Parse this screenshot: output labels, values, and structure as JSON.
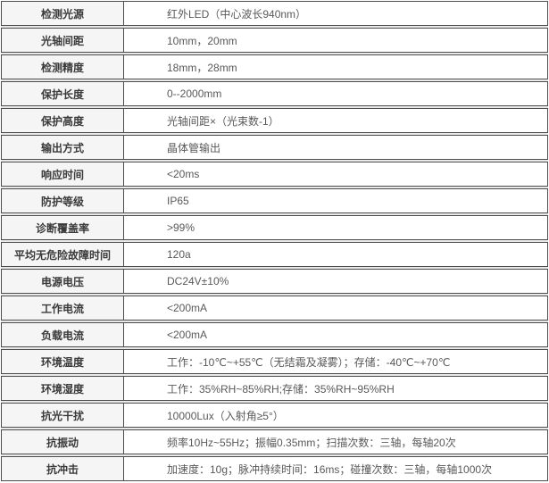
{
  "table": {
    "rows": [
      {
        "label": "检测光源",
        "value": "红外LED（中心波长940nm）"
      },
      {
        "label": "光轴间距",
        "value": "10mm，20mm"
      },
      {
        "label": "检测精度",
        "value": "18mm，28mm"
      },
      {
        "label": "保护长度",
        "value": "0--2000mm"
      },
      {
        "label": "保护高度",
        "value": "光轴间距×（光束数-1）"
      },
      {
        "label": "输出方式",
        "value": "晶体管输出"
      },
      {
        "label": "响应时间",
        "value": "<20ms"
      },
      {
        "label": "防护等级",
        "value": "IP65"
      },
      {
        "label": "诊断覆盖率",
        "value": ">99%"
      },
      {
        "label": "平均无危险故障时间",
        "value": "120a"
      },
      {
        "label": "电源电压",
        "value": "DC24V±10%"
      },
      {
        "label": "工作电流",
        "value": "<200mA"
      },
      {
        "label": "负载电流",
        "value": "<200mA"
      },
      {
        "label": "环境温度",
        "value": "工作：-10℃~+55℃（无结霜及凝雾）；存储：-40℃~+70℃"
      },
      {
        "label": "环境湿度",
        "value": "工作：35%RH~85%RH;存储：35%RH~95%RH"
      },
      {
        "label": "抗光干扰",
        "value": "10000Lux（入射角≥5°）"
      },
      {
        "label": "抗振动",
        "value": "频率10Hz~55Hz；振幅0.35mm；扫描次数：三轴，每轴20次"
      },
      {
        "label": "抗冲击",
        "value": "加速度：10g；脉冲持续时间：16ms；碰撞次数：三轴，每轴1000次"
      }
    ]
  },
  "colors": {
    "row_border": "#4d4d4d",
    "row_gap": "#e9e9e9",
    "label_cell_bg": "#f5f5f5",
    "label_text": "#3a3a3a",
    "value_text": "#595959"
  }
}
